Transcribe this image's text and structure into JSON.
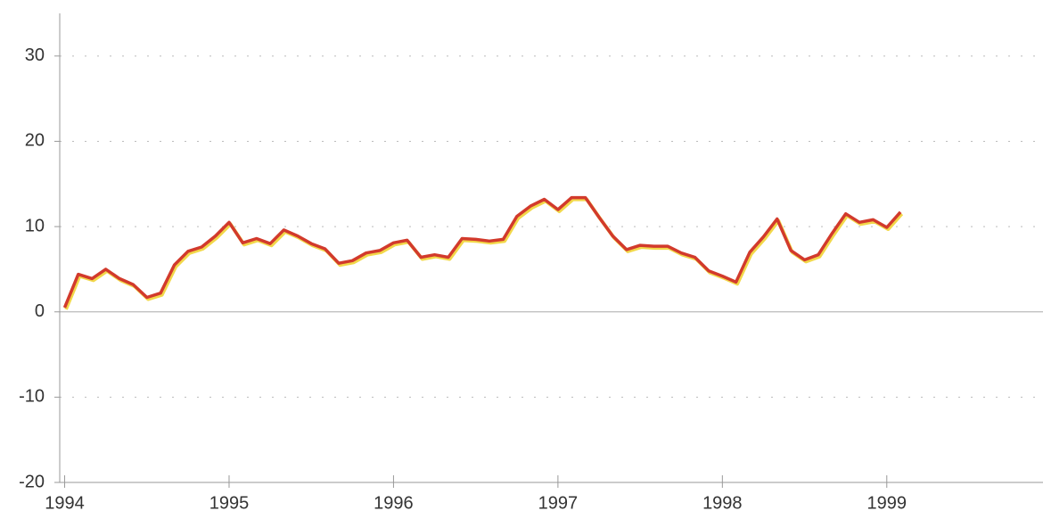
{
  "chart_data": {
    "type": "line",
    "x": [
      1994,
      1994.083,
      1994.167,
      1994.25,
      1994.333,
      1994.417,
      1994.5,
      1994.583,
      1994.667,
      1994.75,
      1994.833,
      1994.917,
      1995,
      1995.083,
      1995.167,
      1995.25,
      1995.333,
      1995.417,
      1995.5,
      1995.583,
      1995.667,
      1995.75,
      1995.833,
      1995.917,
      1996,
      1996.083,
      1996.167,
      1996.25,
      1996.333,
      1996.417,
      1996.5,
      1996.583,
      1996.667,
      1996.75,
      1996.833,
      1996.917,
      1997,
      1997.083,
      1997.167,
      1997.25,
      1997.333,
      1997.417,
      1997.5,
      1997.583,
      1997.667,
      1997.75,
      1997.833,
      1997.917,
      1998,
      1998.083,
      1998.167,
      1998.25,
      1998.333,
      1998.417,
      1998.5,
      1998.583,
      1998.667,
      1998.75,
      1998.833,
      1998.917,
      1999,
      1999.083
    ],
    "series": [
      {
        "color": "#d23a2c",
        "shadow": "#f2d84a",
        "values": [
          0.5,
          4.4,
          3.9,
          5.0,
          3.9,
          3.2,
          1.7,
          2.2,
          5.5,
          7.1,
          7.6,
          8.9,
          10.5,
          8.1,
          8.6,
          8.0,
          9.6,
          8.9,
          8.0,
          7.4,
          5.7,
          6.0,
          6.9,
          7.2,
          8.1,
          8.4,
          6.4,
          6.7,
          6.4,
          8.6,
          8.5,
          8.3,
          8.5,
          11.2,
          12.4,
          13.2,
          12.0,
          13.4,
          13.4,
          11.1,
          8.9,
          7.3,
          7.8,
          7.7,
          7.7,
          6.9,
          6.4,
          4.8,
          4.2,
          3.5,
          7.0,
          8.8,
          10.9,
          7.2,
          6.1,
          6.7,
          9.2,
          11.5,
          10.5,
          10.8,
          9.9,
          11.7
        ]
      }
    ],
    "xlim": [
      1993.97,
      1999.95
    ],
    "xticks": [
      1994,
      1995,
      1996,
      1997,
      1998,
      1999
    ],
    "ylim": [
      -20,
      35
    ],
    "yticks": [
      -20,
      -10,
      0,
      10,
      20,
      30
    ],
    "grid": true
  }
}
